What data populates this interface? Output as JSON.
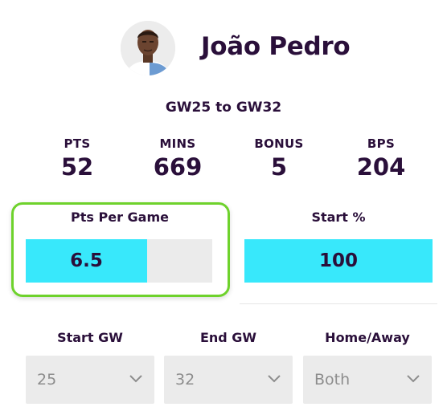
{
  "player": {
    "name": "João Pedro",
    "avatar_icon": "player-avatar-icon"
  },
  "range_label": "GW25 to GW32",
  "stats": [
    {
      "label": "PTS",
      "value": "52"
    },
    {
      "label": "MINS",
      "value": "669"
    },
    {
      "label": "BONUS",
      "value": "5"
    },
    {
      "label": "BPS",
      "value": "204"
    }
  ],
  "metrics": {
    "pts_per_game": {
      "title": "Pts Per Game",
      "value": "6.5",
      "fill_fraction": 0.65
    },
    "start_pct": {
      "title": "Start %",
      "value": "100",
      "fill_fraction": 1.0
    }
  },
  "filters": {
    "start_gw": {
      "label": "Start GW",
      "value": "25"
    },
    "end_gw": {
      "label": "End GW",
      "value": "32"
    },
    "home_away": {
      "label": "Home/Away",
      "value": "Both"
    }
  },
  "colors": {
    "bar_fill": "#38e8fb",
    "highlight_border": "#6ed22c",
    "text": "#2a0f3a"
  }
}
